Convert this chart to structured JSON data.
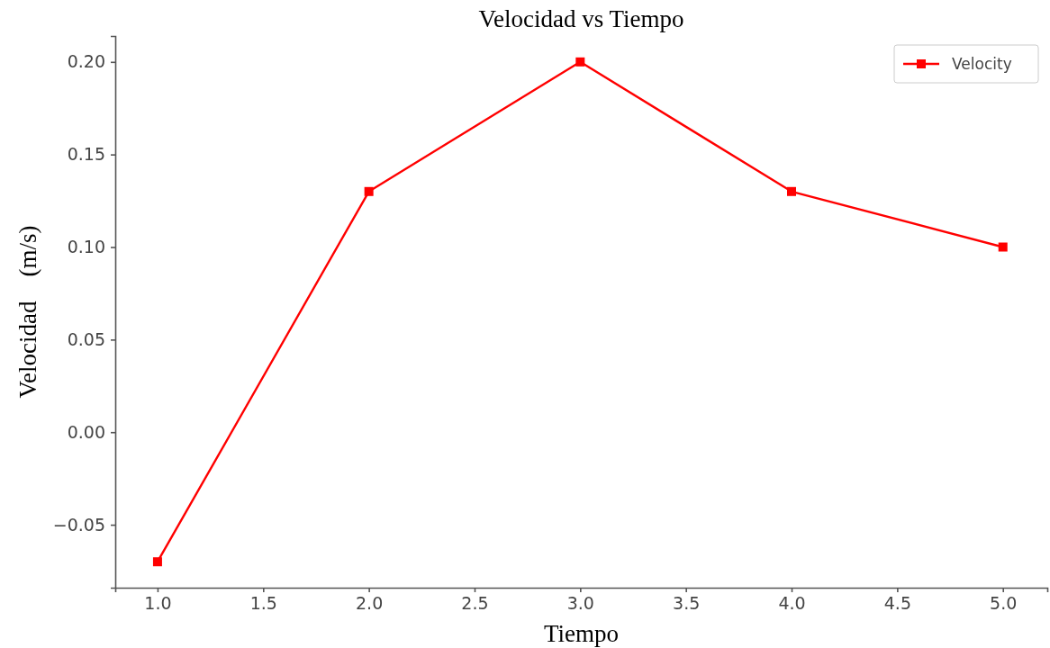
{
  "chart_data": {
    "type": "line",
    "title": "Velocidad vs Tiempo",
    "xlabel": "Tiempo",
    "ylabel": "Velocidad    (m/s)",
    "x": [
      1,
      2,
      3,
      4,
      5
    ],
    "series": [
      {
        "name": "Velocity",
        "color": "#ff0000",
        "values": [
          -0.07,
          0.13,
          0.2,
          0.13,
          0.1
        ]
      }
    ],
    "xlim": [
      0.8,
      5.21
    ],
    "xticks": [
      {
        "value": 1,
        "label": "1.0"
      },
      {
        "value": 1.5,
        "label": "1.5"
      },
      {
        "value": 2,
        "label": "2.0"
      },
      {
        "value": 2.5,
        "label": "2.5"
      },
      {
        "value": 3,
        "label": "3.0"
      },
      {
        "value": 3.5,
        "label": "3.5"
      },
      {
        "value": 4,
        "label": "4.0"
      },
      {
        "value": 4.5,
        "label": "4.5"
      },
      {
        "value": 5,
        "label": "5.0"
      }
    ],
    "ylim": [
      -0.084,
      0.214
    ],
    "yticks": [
      {
        "value": -0.05,
        "label": "−0.05"
      },
      {
        "value": 0,
        "label": "0.00"
      },
      {
        "value": 0.05,
        "label": "0.05"
      },
      {
        "value": 0.1,
        "label": "0.10"
      },
      {
        "value": 0.15,
        "label": "0.15"
      },
      {
        "value": 0.2,
        "label": "0.20"
      }
    ],
    "marker": "square",
    "line_style": "solid",
    "legend": "top right",
    "grid": false
  }
}
